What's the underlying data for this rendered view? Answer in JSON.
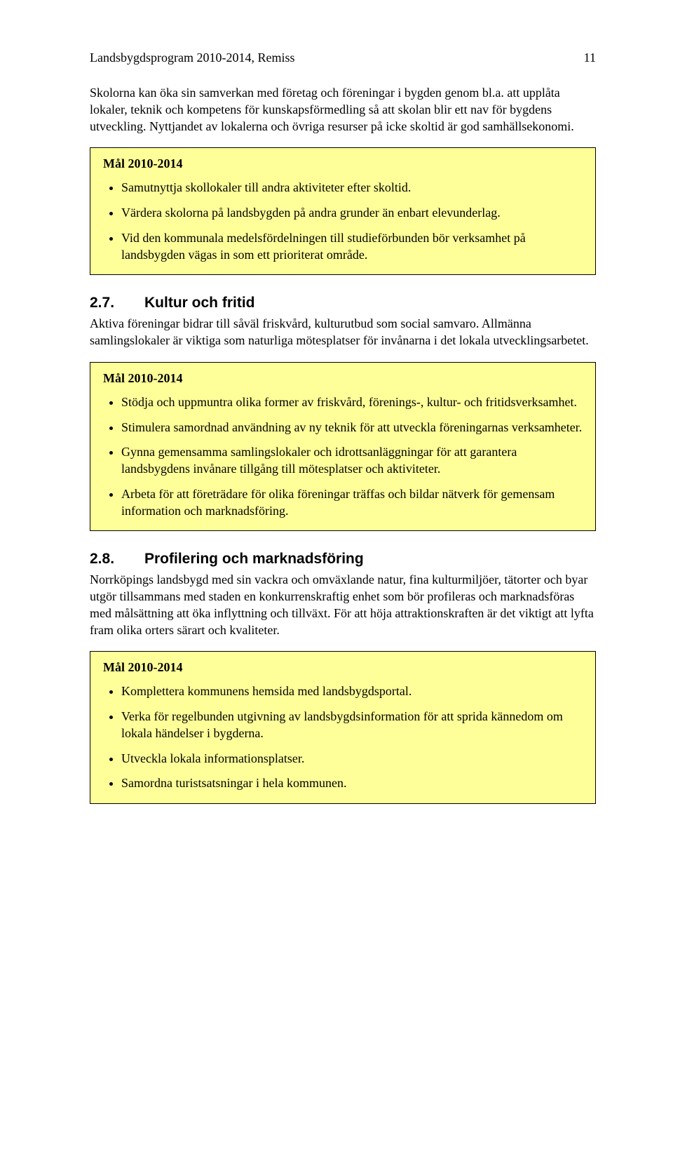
{
  "colors": {
    "box_bg": "#ffff99",
    "box_border": "#000000",
    "page_bg": "#ffffff",
    "text": "#000000"
  },
  "typography": {
    "body_font": "Times New Roman",
    "body_size_pt": 13,
    "heading_font": "Arial",
    "heading_size_pt": 16,
    "heading_weight": "bold"
  },
  "header": {
    "title": "Landsbygdsprogram 2010-2014, Remiss",
    "page_number": "11"
  },
  "intro_para": "Skolorna kan öka sin samverkan med företag och föreningar i bygden genom bl.a. att upplåta lokaler, teknik och kompetens för kunskapsförmedling så att skolan blir ett nav för bygdens utveckling. Nyttjandet av lokalerna och övriga resurser på icke skoltid är god samhällsekonomi.",
  "box1": {
    "title": "Mål 2010-2014",
    "items": [
      "Samutnyttja skollokaler till andra aktiviteter efter skoltid.",
      "Värdera skolorna på landsbygden på andra grunder än enbart elevunderlag.",
      "Vid den kommunala medelsfördelningen till studieförbunden bör verksamhet på landsbygden vägas in som ett prioriterat område."
    ]
  },
  "section27": {
    "num": "2.7.",
    "title": "Kultur och fritid",
    "para": "Aktiva föreningar bidrar till såväl friskvård, kulturutbud som social samvaro. Allmänna samlingslokaler är viktiga som naturliga mötesplatser för invånarna i det lokala utvecklingsarbetet."
  },
  "box2": {
    "title": "Mål 2010-2014",
    "items": [
      "Stödja och uppmuntra olika former av friskvård, förenings-, kultur- och fritidsverksamhet.",
      "Stimulera samordnad användning av ny teknik för att utveckla föreningarnas verksamheter.",
      "Gynna gemensamma samlingslokaler och idrottsanläggningar för att garantera landsbygdens invånare tillgång till mötesplatser och aktiviteter.",
      "Arbeta för att företrädare för olika föreningar träffas och bildar nätverk för gemensam information och marknadsföring."
    ]
  },
  "section28": {
    "num": "2.8.",
    "title": "Profilering och marknadsföring",
    "para": "Norrköpings landsbygd med sin vackra och omväxlande natur, fina kulturmiljöer, tätorter och byar utgör tillsammans med staden en konkurrenskraftig enhet som bör profileras och marknadsföras med målsättning att öka inflyttning och tillväxt. För att höja attraktionskraften är det viktigt att lyfta fram olika orters särart och kvaliteter."
  },
  "box3": {
    "title": "Mål 2010-2014",
    "items": [
      "Komplettera kommunens hemsida med landsbygdsportal.",
      "Verka för regelbunden utgivning av landsbygdsinformation för att sprida kännedom om lokala händelser i bygderna.",
      "Utveckla lokala informationsplatser.",
      "Samordna turistsatsningar i hela kommunen."
    ]
  }
}
